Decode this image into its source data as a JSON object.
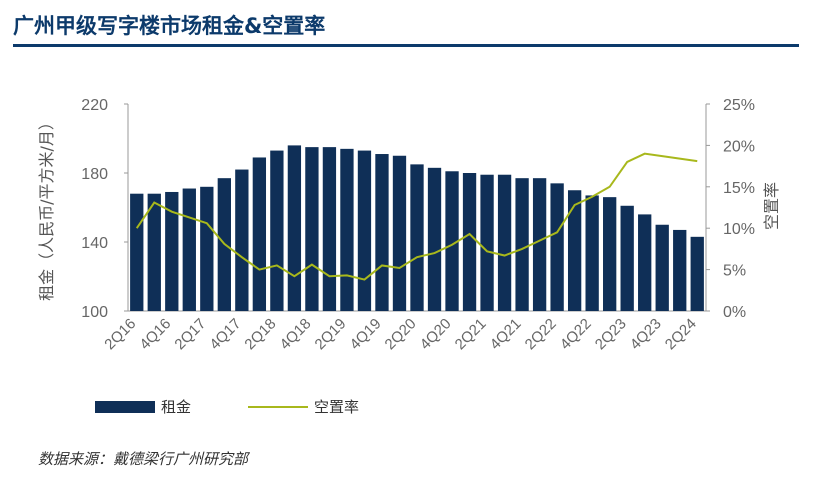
{
  "title": "广州甲级写字楼市场租金&空置率",
  "source": "数据来源：戴德梁行广州研究部",
  "chart_data": {
    "type": "bar+line",
    "categories": [
      "2Q16",
      "3Q16",
      "4Q16",
      "1Q17",
      "2Q17",
      "3Q17",
      "4Q17",
      "1Q18",
      "2Q18",
      "3Q18",
      "4Q18",
      "1Q19",
      "2Q19",
      "3Q19",
      "4Q19",
      "1Q20",
      "2Q20",
      "3Q20",
      "4Q20",
      "1Q21",
      "2Q21",
      "3Q21",
      "4Q21",
      "1Q22",
      "2Q22",
      "3Q22",
      "4Q22",
      "1Q23",
      "2Q23",
      "3Q23",
      "4Q23",
      "1Q24",
      "2Q24"
    ],
    "x_tick_labels": [
      "2Q16",
      "4Q16",
      "2Q17",
      "4Q17",
      "2Q18",
      "4Q18",
      "2Q19",
      "4Q19",
      "2Q20",
      "4Q20",
      "2Q21",
      "4Q21",
      "2Q22",
      "4Q22",
      "2Q23",
      "4Q23",
      "2Q24"
    ],
    "y_left": {
      "label": "租金（人民币/平方米/月）",
      "min": 100,
      "max": 220,
      "ticks": [
        100,
        140,
        180,
        220
      ]
    },
    "y_right": {
      "label": "空置率",
      "min": 0,
      "max": 25,
      "ticks": [
        "0%",
        "5%",
        "10%",
        "15%",
        "20%",
        "25%"
      ]
    },
    "series": [
      {
        "name": "租金",
        "type": "bar",
        "axis": "left",
        "color": "#0f2f57",
        "values": [
          168,
          168,
          169,
          171,
          172,
          177,
          182,
          189,
          193,
          196,
          195,
          195,
          194,
          193,
          191,
          190,
          185,
          183,
          181,
          180,
          179,
          179,
          177,
          177,
          174,
          170,
          167,
          166,
          161,
          156,
          150,
          147,
          143
        ]
      },
      {
        "name": "空置率",
        "type": "line",
        "axis": "right",
        "color": "#a8b81c",
        "values": [
          10.0,
          13.1,
          12.0,
          11.3,
          10.6,
          8.1,
          6.5,
          5.0,
          5.5,
          4.2,
          5.6,
          4.2,
          4.3,
          3.8,
          5.5,
          5.2,
          6.5,
          7.0,
          8.0,
          9.3,
          7.2,
          6.7,
          7.5,
          8.5,
          9.5,
          12.8,
          13.8,
          15.0,
          18.0,
          19.0,
          18.7,
          18.4,
          18.1
        ]
      }
    ]
  }
}
